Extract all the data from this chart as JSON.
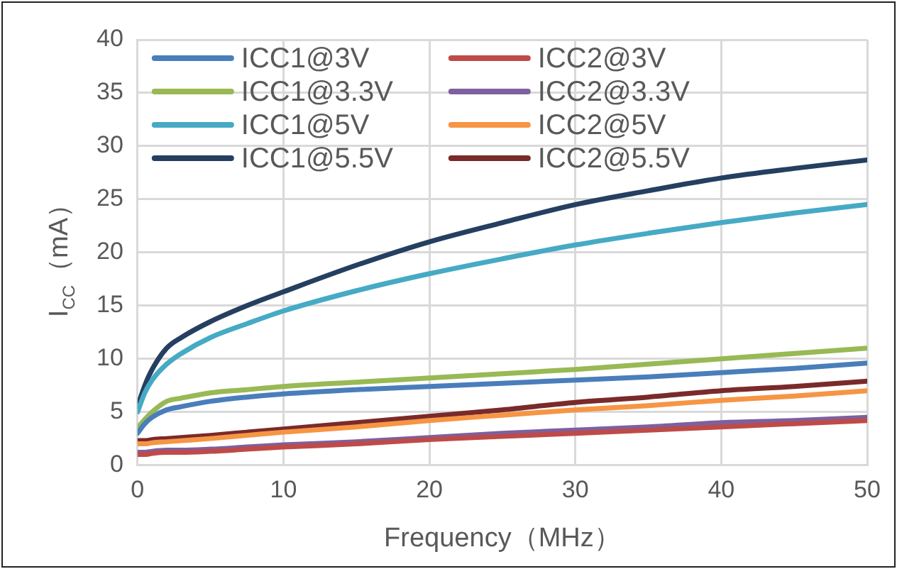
{
  "chart_data": {
    "type": "line",
    "xlabel": "Frequency（MHz）",
    "ylabel": "I$_{CC}$（mA）",
    "x": [
      0,
      0.5,
      1,
      2,
      3,
      5,
      7.5,
      10,
      15,
      20,
      25,
      30,
      35,
      40,
      45,
      50
    ],
    "series": [
      {
        "name": "ICC1@3V",
        "color": "#4a7ebb",
        "values": [
          3,
          3.9,
          4.5,
          5.2,
          5.5,
          6,
          6.4,
          6.7,
          7.1,
          7.4,
          7.7,
          8,
          8.3,
          8.7,
          9.1,
          9.6
        ]
      },
      {
        "name": "ICC2@3V",
        "color": "#be4b48",
        "values": [
          1,
          1,
          1.1,
          1.2,
          1.2,
          1.3,
          1.5,
          1.7,
          2,
          2.4,
          2.7,
          3,
          3.3,
          3.6,
          3.9,
          4.2
        ]
      },
      {
        "name": "ICC1@3.3V",
        "color": "#98b954",
        "values": [
          3.5,
          4.3,
          5,
          6,
          6.3,
          6.8,
          7.1,
          7.4,
          7.8,
          8.2,
          8.6,
          9,
          9.5,
          10,
          10.5,
          11
        ]
      },
      {
        "name": "ICC2@3.3V",
        "color": "#7d60a0",
        "values": [
          1.2,
          1.2,
          1.3,
          1.4,
          1.4,
          1.5,
          1.7,
          1.9,
          2.2,
          2.6,
          3,
          3.3,
          3.6,
          4,
          4.2,
          4.5
        ]
      },
      {
        "name": "ICC1@5V",
        "color": "#46aac5",
        "values": [
          5,
          6.8,
          8,
          9.5,
          10.5,
          12,
          13.3,
          14.5,
          16.4,
          18,
          19.4,
          20.7,
          21.8,
          22.8,
          23.7,
          24.5
        ]
      },
      {
        "name": "ICC2@5V",
        "color": "#f69544",
        "values": [
          2,
          2,
          2.1,
          2.2,
          2.3,
          2.5,
          2.8,
          3.1,
          3.6,
          4.2,
          4.7,
          5.2,
          5.6,
          6.1,
          6.5,
          7
        ]
      },
      {
        "name": "ICC1@5.5V",
        "color": "#253f60",
        "values": [
          5.5,
          7.5,
          9,
          11,
          12,
          13.5,
          15,
          16.3,
          18.8,
          21,
          22.8,
          24.5,
          25.8,
          27,
          27.9,
          28.7
        ]
      },
      {
        "name": "ICC2@5.5V",
        "color": "#7a2a2a",
        "values": [
          2.3,
          2.3,
          2.4,
          2.5,
          2.6,
          2.8,
          3.1,
          3.4,
          4,
          4.6,
          5.2,
          5.9,
          6.4,
          7,
          7.4,
          7.9
        ]
      }
    ],
    "xlim": [
      0,
      50
    ],
    "xticks": [
      0,
      10,
      20,
      30,
      40,
      50
    ],
    "ylim": [
      0,
      40
    ],
    "yticks": [
      0,
      5,
      10,
      15,
      20,
      25,
      30,
      35,
      40
    ],
    "grid": true,
    "legend": "top left",
    "marker": "none",
    "line_style": "solid"
  }
}
